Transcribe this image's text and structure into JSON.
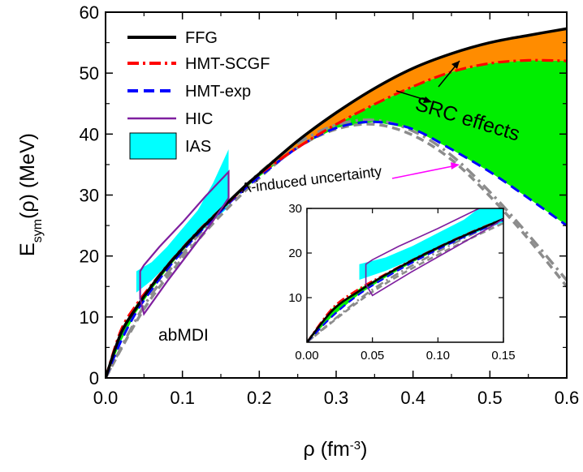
{
  "chart_data": {
    "type": "line",
    "xlabel": {
      "main": "ρ (fm",
      "sup": "-3",
      "close": ")"
    },
    "ylabel": {
      "main": "E",
      "sub": "sym",
      "rest": "(ρ) (MeV)"
    },
    "xlim": [
      0,
      0.6
    ],
    "ylim": [
      0,
      60
    ],
    "x_ticks": [
      "0.0",
      "0.1",
      "0.2",
      "0.3",
      "0.4",
      "0.5",
      "0.6"
    ],
    "y_ticks": [
      "0",
      "10",
      "20",
      "30",
      "40",
      "50",
      "60"
    ],
    "legend_position": "top-left",
    "series": [
      {
        "name": "FFG",
        "style": "solid",
        "color": "#000000",
        "x": [
          0,
          0.02,
          0.04,
          0.06,
          0.08,
          0.1,
          0.12,
          0.14,
          0.16,
          0.18,
          0.2,
          0.25,
          0.3,
          0.35,
          0.4,
          0.45,
          0.5,
          0.55,
          0.6
        ],
        "y": [
          0,
          7.3,
          11.5,
          15.1,
          18.3,
          21.2,
          23.9,
          26.4,
          28.9,
          31.3,
          33.5,
          38.9,
          43.5,
          47.5,
          50.8,
          53.2,
          55.0,
          56.2,
          57.3
        ]
      },
      {
        "name": "HMT-SCGF",
        "style": "dash-dot",
        "color": "#ff0000",
        "x": [
          0,
          0.02,
          0.04,
          0.06,
          0.08,
          0.1,
          0.12,
          0.14,
          0.16,
          0.18,
          0.2,
          0.25,
          0.3,
          0.35,
          0.4,
          0.45,
          0.5,
          0.55,
          0.6
        ],
        "y": [
          0,
          7.8,
          12.0,
          15.3,
          18.4,
          21.3,
          24.0,
          26.5,
          28.8,
          31.2,
          33.4,
          37.8,
          41.6,
          44.9,
          47.8,
          50.2,
          51.6,
          52.1,
          52.0
        ]
      },
      {
        "name": "HMT-exp",
        "style": "dashed",
        "color": "#0000ff",
        "x": [
          0,
          0.02,
          0.04,
          0.06,
          0.08,
          0.1,
          0.12,
          0.14,
          0.16,
          0.18,
          0.2,
          0.25,
          0.3,
          0.35,
          0.4,
          0.45,
          0.5,
          0.55,
          0.6
        ],
        "y": [
          0,
          6.0,
          10.8,
          14.5,
          17.8,
          20.8,
          23.6,
          26.1,
          28.6,
          30.9,
          33.0,
          37.8,
          41.0,
          42.0,
          40.8,
          37.5,
          33.8,
          29.5,
          25.0
        ]
      },
      {
        "name": "HIC",
        "style": "polygon",
        "color": "#7f1f9f",
        "x": [
          0.045,
          0.045,
          0.05,
          0.08,
          0.11,
          0.14,
          0.16,
          0.16,
          0.13,
          0.1,
          0.07,
          0.05,
          0.045
        ],
        "y": [
          17.5,
          13.0,
          10.5,
          15.8,
          20.8,
          25.8,
          29.5,
          33.8,
          29.8,
          25.5,
          21.5,
          18.5,
          17.5
        ]
      },
      {
        "name": "IAS",
        "style": "band",
        "color": "#00ffff",
        "x": [
          0.04,
          0.06,
          0.08,
          0.1,
          0.12,
          0.14,
          0.16
        ],
        "y_low": [
          14.0,
          16.0,
          18.5,
          21.0,
          23.5,
          25.8,
          28.0
        ],
        "y_high": [
          17.5,
          19.0,
          21.5,
          24.5,
          27.5,
          32.0,
          37.5
        ]
      }
    ],
    "uncertainty_curves": {
      "style": "gray dash-dot",
      "x": [
        0,
        0.05,
        0.1,
        0.15,
        0.2,
        0.25,
        0.3,
        0.35,
        0.4,
        0.45,
        0.5,
        0.55,
        0.6
      ],
      "upper": [
        0,
        11.8,
        20.3,
        27.5,
        33.6,
        38.5,
        41.5,
        42.3,
        40.5,
        36.5,
        30.5,
        23.5,
        16.0
      ],
      "lower": [
        0,
        11.3,
        19.6,
        26.7,
        32.8,
        37.8,
        40.8,
        41.6,
        39.8,
        35.8,
        29.8,
        22.8,
        15.0
      ]
    },
    "src_band": {
      "color": "#00ee00",
      "between": [
        "HMT-SCGF",
        "HMT-exp"
      ]
    },
    "orange_band": {
      "color": "#ff8c00",
      "between": [
        "FFG",
        "HMT-SCGF"
      ]
    },
    "annotations": {
      "model": "abMDI",
      "src": "SRC effects",
      "lambda_prefix": "Λ",
      "lambda_rest": "-induced uncertainty"
    },
    "inset": {
      "xlim": [
        0,
        0.15
      ],
      "ylim": [
        0,
        30
      ],
      "x_ticks": [
        "0.00",
        "0.05",
        "0.10",
        "0.15"
      ],
      "y_ticks": [
        "10",
        "20",
        "30"
      ]
    }
  }
}
